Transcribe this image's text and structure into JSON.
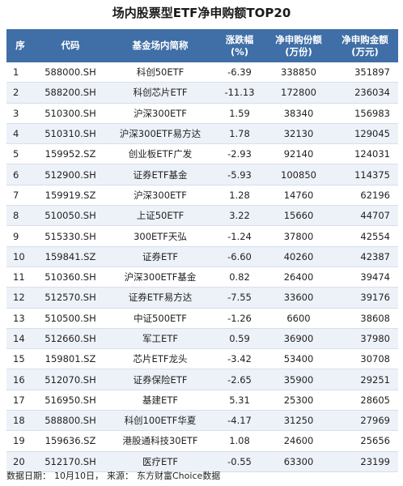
{
  "title": "场内股票型ETF净申购额TOP20",
  "header": {
    "idx": "序",
    "code": "代码",
    "name": "基金场内简称",
    "change_line1": "涨跌幅",
    "change_line2": "(%)",
    "shares_line1": "净申购份额",
    "shares_line2": "(万份)",
    "amount_line1": "净申购金额",
    "amount_line2": "(万元)"
  },
  "rows": [
    {
      "idx": "1",
      "code": "588000.SH",
      "name": "科创50ETF",
      "change": "-6.39",
      "shares": "338850",
      "amount": "351897"
    },
    {
      "idx": "2",
      "code": "588200.SH",
      "name": "科创芯片ETF",
      "change": "-11.13",
      "shares": "172800",
      "amount": "236034"
    },
    {
      "idx": "3",
      "code": "510300.SH",
      "name": "沪深300ETF",
      "change": "1.59",
      "shares": "38340",
      "amount": "156983"
    },
    {
      "idx": "4",
      "code": "510310.SH",
      "name": "沪深300ETF易方达",
      "change": "1.78",
      "shares": "32130",
      "amount": "129045"
    },
    {
      "idx": "5",
      "code": "159952.SZ",
      "name": "创业板ETF广发",
      "change": "-2.93",
      "shares": "92140",
      "amount": "124031"
    },
    {
      "idx": "6",
      "code": "512900.SH",
      "name": "证券ETF基金",
      "change": "-5.93",
      "shares": "100850",
      "amount": "114375"
    },
    {
      "idx": "7",
      "code": "159919.SZ",
      "name": "沪深300ETF",
      "change": "1.28",
      "shares": "14760",
      "amount": "62196"
    },
    {
      "idx": "8",
      "code": "510050.SH",
      "name": "上证50ETF",
      "change": "3.22",
      "shares": "15660",
      "amount": "44707"
    },
    {
      "idx": "9",
      "code": "515330.SH",
      "name": "300ETF天弘",
      "change": "-1.24",
      "shares": "37800",
      "amount": "42554"
    },
    {
      "idx": "10",
      "code": "159841.SZ",
      "name": "证券ETF",
      "change": "-6.60",
      "shares": "40260",
      "amount": "42387"
    },
    {
      "idx": "11",
      "code": "510360.SH",
      "name": "沪深300ETF基金",
      "change": "0.82",
      "shares": "26400",
      "amount": "39474"
    },
    {
      "idx": "12",
      "code": "512570.SH",
      "name": "证券ETF易方达",
      "change": "-7.55",
      "shares": "33600",
      "amount": "39176"
    },
    {
      "idx": "13",
      "code": "510500.SH",
      "name": "中证500ETF",
      "change": "-1.26",
      "shares": "6600",
      "amount": "38608"
    },
    {
      "idx": "14",
      "code": "512660.SH",
      "name": "军工ETF",
      "change": "0.59",
      "shares": "36900",
      "amount": "37980"
    },
    {
      "idx": "15",
      "code": "159801.SZ",
      "name": "芯片ETF龙头",
      "change": "-3.42",
      "shares": "53400",
      "amount": "30708"
    },
    {
      "idx": "16",
      "code": "512070.SH",
      "name": "证券保险ETF",
      "change": "-2.65",
      "shares": "35900",
      "amount": "29251"
    },
    {
      "idx": "17",
      "code": "516950.SH",
      "name": "基建ETF",
      "change": "5.31",
      "shares": "25300",
      "amount": "28605"
    },
    {
      "idx": "18",
      "code": "588800.SH",
      "name": "科创100ETF华夏",
      "change": "-4.17",
      "shares": "31250",
      "amount": "27969"
    },
    {
      "idx": "19",
      "code": "159636.SZ",
      "name": "港股通科技30ETF",
      "change": "1.08",
      "shares": "24600",
      "amount": "25656"
    },
    {
      "idx": "20",
      "code": "512170.SH",
      "name": "医疗ETF",
      "change": "-0.55",
      "shares": "63300",
      "amount": "23199"
    }
  ],
  "footer": {
    "date_text": "数据日期：",
    "date_value": "10月10日，",
    "source_text": "来源：",
    "source_value": "东方财富Choice数据"
  },
  "colors": {
    "header_bg": "#3f6fa6",
    "header_text": "#ffffff",
    "stripe": "#edf2f9",
    "border": "#d7dfea"
  }
}
